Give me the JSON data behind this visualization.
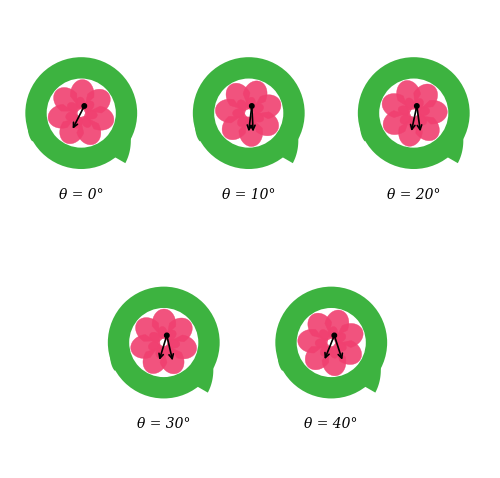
{
  "angles": [
    0,
    10,
    20,
    30,
    40
  ],
  "labels": [
    "θ = 0°",
    "θ = 10°",
    "θ = 20°",
    "θ = 30°",
    "θ = 40°"
  ],
  "green_color": "#3db340",
  "pink_color": "#f04070",
  "background": "#ffffff",
  "num_petals": 7,
  "label_fontsize": 10
}
